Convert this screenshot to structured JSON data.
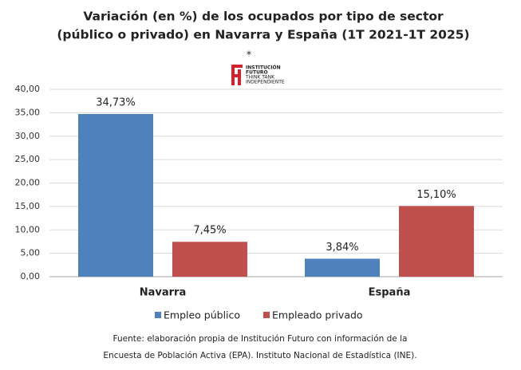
{
  "chart_data": {
    "type": "bar",
    "title": [
      "Variación (en %) de los ocupados por tipo de sector",
      "(público o privado) en Navarra y España (1T 2021-1T 2025)"
    ],
    "logo": {
      "mark": "*",
      "lines": [
        "INSTITUCIÓN",
        "FUTURO",
        "THINK TANK",
        "INDEPENDIENTE"
      ]
    },
    "categories": [
      "Navarra",
      "España"
    ],
    "series": [
      {
        "name": "Empleo público",
        "color": "#4f81bd",
        "values": [
          34.73,
          3.84
        ],
        "value_labels": [
          "34,73%",
          "3,84%"
        ]
      },
      {
        "name": "Empleado privado",
        "color": "#c0504d",
        "values": [
          7.45,
          15.1
        ],
        "value_labels": [
          "7,45%",
          "15,10%"
        ]
      }
    ],
    "ylim": [
      0,
      40
    ],
    "yticks": [
      {
        "value": 0,
        "label": "0,00"
      },
      {
        "value": 5,
        "label": "5,00"
      },
      {
        "value": 10,
        "label": "10,00"
      },
      {
        "value": 15,
        "label": "15,00"
      },
      {
        "value": 20,
        "label": "20,00"
      },
      {
        "value": 25,
        "label": "25,00"
      },
      {
        "value": 30,
        "label": "30,00"
      },
      {
        "value": 35,
        "label": "35,00"
      },
      {
        "value": 40,
        "label": "40,00"
      }
    ],
    "grid": true,
    "legend": "bottom",
    "footnote": [
      "Fuente: elaboración propia de Institución Futuro con información de la",
      "Encuesta de Población Activa (EPA). Instituto Nacional de Estadística (INE)."
    ]
  }
}
